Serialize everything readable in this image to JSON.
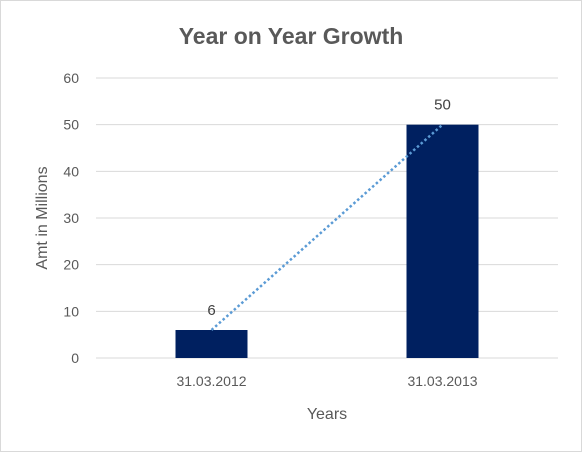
{
  "chart_data": {
    "type": "bar",
    "title": "Year on Year Growth",
    "xlabel": "Years",
    "ylabel": "Amt in Millions",
    "categories": [
      "31.03.2012",
      "31.03.2013"
    ],
    "values": [
      6,
      50
    ],
    "data_labels": [
      "6",
      "50"
    ],
    "ylim": [
      0,
      60
    ],
    "yticks": [
      0,
      10,
      20,
      30,
      40,
      50,
      60
    ],
    "ytick_labels": [
      "0",
      "10",
      "20",
      "30",
      "40",
      "50",
      "60"
    ],
    "grid": true,
    "legend": "none",
    "trendline": "linear dotted",
    "colors": {
      "bar": "#002060",
      "trendline": "#5b9bd5",
      "grid": "#d9d9d9",
      "text": "#595959"
    }
  }
}
